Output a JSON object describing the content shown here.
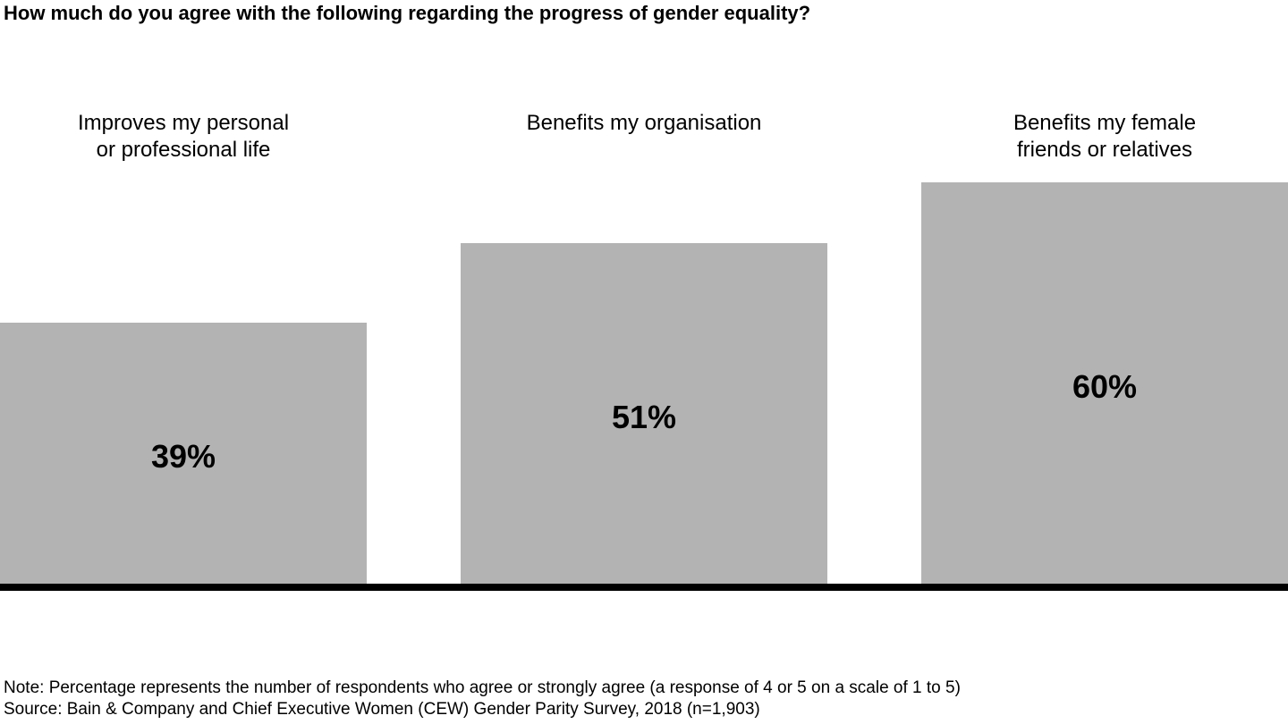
{
  "title": "How much do you agree with the following regarding the progress of gender equality?",
  "chart_data": {
    "type": "bar",
    "title": "How much do you agree with the following regarding the progress of gender equality?",
    "categories": [
      "Improves my personal\nor professional life",
      "Benefits my organisation",
      "Benefits my female\nfriends or relatives"
    ],
    "values": [
      39,
      51,
      60
    ],
    "bars": [
      {
        "label": "Improves my personal\nor professional life",
        "value": 39,
        "value_label": "39%"
      },
      {
        "label": "Benefits my organisation",
        "value": 51,
        "value_label": "51%"
      },
      {
        "label": "Benefits my female\nfriends or relatives",
        "value": 60,
        "value_label": "60%"
      }
    ],
    "xlabel": "",
    "ylabel": "",
    "ylim": [
      0,
      100
    ],
    "grid": false,
    "legend": false,
    "value_labels_position": "center-inside-bar",
    "bar_color": "#b3b3b3",
    "value_label_color": "#000000",
    "axis_line_color": "#000000"
  },
  "note": "Note: Percentage represents the number of respondents who agree or strongly agree (a response of 4 or 5 on a scale of 1 to 5)",
  "source": "Source: Bain & Company and Chief Executive Women (CEW) Gender Parity Survey, 2018 (n=1,903)"
}
